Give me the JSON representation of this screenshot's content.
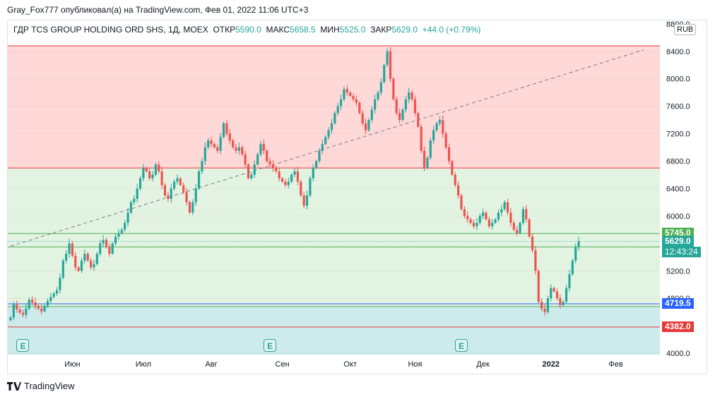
{
  "header": {
    "text": "Gray_Fox777 опубликовал(а) на TradingView.com, Фев 01, 2022 11:06 UTC+3"
  },
  "info": {
    "symbol": "ГДР TCS GROUP HOLDING ORD SHS, 1Д, MOEX",
    "open_label": "ОТКР",
    "open_value": "5590.0",
    "high_label": "МАКС",
    "high_value": "5658.5",
    "low_label": "МИН",
    "low_value": "5525.0",
    "close_label": "ЗАКР",
    "close_value": "5629.0",
    "change": "+44.0 (+0.79%)"
  },
  "currency": "RUB",
  "footer": {
    "brand": "TradingView"
  },
  "colors": {
    "up": "#26a69a",
    "down": "#ef5350",
    "zone_red": "#ffd8d8",
    "zone_green": "#e3f3e2",
    "zone_teal": "#cdebea",
    "blue": "#2962ff"
  },
  "chart_data": {
    "type": "candlestick",
    "ylim": [
      3980,
      8850
    ],
    "y_ticks": [
      {
        "v": 8800,
        "label": "8800.0"
      },
      {
        "v": 8400,
        "label": "8400.0"
      },
      {
        "v": 8000,
        "label": "8000.0"
      },
      {
        "v": 7600,
        "label": "7600.0"
      },
      {
        "v": 7200,
        "label": "7200.0"
      },
      {
        "v": 6800,
        "label": "6800.0"
      },
      {
        "v": 6400,
        "label": "6400.0"
      },
      {
        "v": 6000,
        "label": "6000.0"
      },
      {
        "v": 5200,
        "label": "5200.0"
      },
      {
        "v": 4800,
        "label": "4800.0"
      },
      {
        "v": 4000,
        "label": "4000.0"
      }
    ],
    "x_ticks": [
      {
        "i": 20,
        "label": "Июн"
      },
      {
        "i": 43,
        "label": "Июл"
      },
      {
        "i": 65,
        "label": "Авг"
      },
      {
        "i": 88,
        "label": "Сен"
      },
      {
        "i": 110,
        "label": "Окт"
      },
      {
        "i": 131,
        "label": "Ноя"
      },
      {
        "i": 153,
        "label": "Дек"
      },
      {
        "i": 175,
        "label": "2022",
        "bold": true
      },
      {
        "i": 196,
        "label": "Фев"
      }
    ],
    "zones": [
      {
        "from": 6700,
        "to": 8480,
        "color": "#ffd8d8"
      },
      {
        "from": 4680,
        "to": 6700,
        "color": "#e3f3e2"
      },
      {
        "from": 3980,
        "to": 4680,
        "color": "#cdebea"
      }
    ],
    "levels": [
      {
        "v": 8480,
        "color": "#e53935",
        "width": 1
      },
      {
        "v": 6700,
        "color": "#e53935",
        "width": 1
      },
      {
        "v": 5745,
        "color": "#4caf50",
        "width": 1
      },
      {
        "v": 5550,
        "color": "#4caf50",
        "width": 1
      },
      {
        "v": 4719.5,
        "color": "#2962ff",
        "width": 1
      },
      {
        "v": 4680,
        "color": "#4caf50",
        "width": 1
      },
      {
        "v": 4382,
        "color": "#e53935",
        "width": 1
      }
    ],
    "price_labels": [
      {
        "v": 5745,
        "label": "5745.0",
        "color": "#4caf50"
      },
      {
        "v": 5629,
        "label": "5629.0",
        "color": "#26a69a"
      },
      {
        "v": 4719.5,
        "label": "4719.5",
        "color": "#2962ff"
      },
      {
        "v": 4382,
        "label": "4382.0",
        "color": "#e53935"
      }
    ],
    "countdown": "12:43:24",
    "trendline": {
      "i1": 0,
      "v1": 5560,
      "i2": 205,
      "v2": 8420
    },
    "earnings_at": [
      4,
      84,
      146
    ],
    "close": [
      4520,
      4710,
      4640,
      4590,
      4560,
      4650,
      4780,
      4740,
      4690,
      4650,
      4610,
      4690,
      4760,
      4820,
      4870,
      4920,
      5100,
      5350,
      5450,
      5600,
      5420,
      5250,
      5200,
      5350,
      5450,
      5350,
      5250,
      5300,
      5450,
      5600,
      5650,
      5550,
      5450,
      5600,
      5700,
      5750,
      5800,
      5900,
      6050,
      6200,
      6250,
      6400,
      6550,
      6700,
      6650,
      6550,
      6600,
      6750,
      6650,
      6450,
      6300,
      6250,
      6400,
      6500,
      6550,
      6450,
      6350,
      6200,
      6050,
      6200,
      6400,
      6650,
      6800,
      7000,
      7100,
      7050,
      7000,
      6950,
      7150,
      7350,
      7200,
      7100,
      7000,
      6950,
      7000,
      6900,
      6750,
      6550,
      6600,
      6750,
      6900,
      7050,
      6950,
      6800,
      6750,
      6700,
      6650,
      6550,
      6500,
      6450,
      6500,
      6600,
      6650,
      6500,
      6300,
      6150,
      6300,
      6550,
      6700,
      6800,
      6950,
      7050,
      7150,
      7250,
      7350,
      7500,
      7600,
      7700,
      7850,
      7800,
      7750,
      7700,
      7650,
      7500,
      7350,
      7250,
      7400,
      7550,
      7700,
      7800,
      7950,
      8200,
      8400,
      8000,
      7700,
      7500,
      7400,
      7550,
      7700,
      7800,
      7700,
      7500,
      7300,
      6950,
      6700,
      6850,
      7100,
      7250,
      7350,
      7400,
      7200,
      7000,
      6800,
      6600,
      6450,
      6300,
      6100,
      6000,
      5950,
      5900,
      5850,
      5900,
      6000,
      6050,
      5950,
      5850,
      5900,
      5950,
      6050,
      6100,
      6200,
      6050,
      5900,
      5800,
      5750,
      5900,
      6100,
      5950,
      5700,
      5500,
      5200,
      4750,
      4650,
      4600,
      4800,
      4950,
      4900,
      4800,
      4700,
      4750,
      4950,
      5150,
      5350,
      5550,
      5629
    ]
  }
}
